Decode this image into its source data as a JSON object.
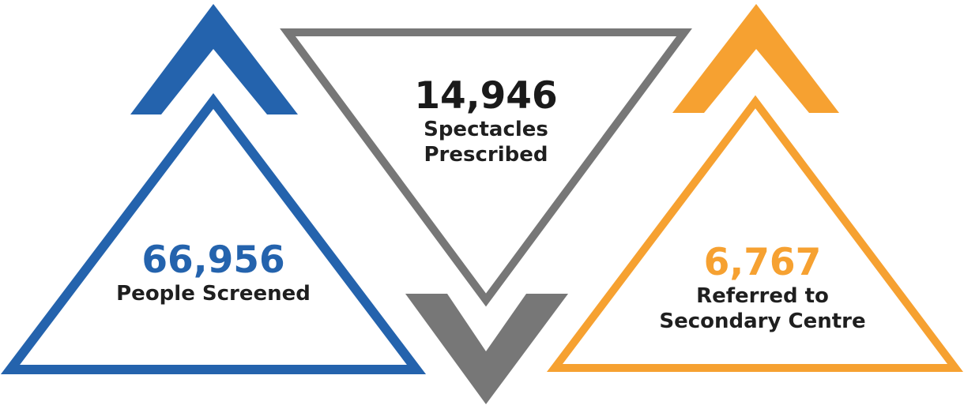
{
  "colors": {
    "blue": "#2463ad",
    "gray": "#777777",
    "orange": "#f6a131",
    "text_dark": "#1f1f1f"
  },
  "stats": {
    "people_screened": {
      "value": "66,956",
      "label": "People Screened",
      "color": "#2463ad"
    },
    "spectacles_prescribed": {
      "value": "14,946",
      "label_line1": "Spectacles",
      "label_line2": "Prescribed",
      "color": "#1a1a1a"
    },
    "referred_secondary": {
      "value": "6,767",
      "label_line1": "Referred to",
      "label_line2": "Secondary Centre",
      "color": "#f6a131"
    }
  }
}
